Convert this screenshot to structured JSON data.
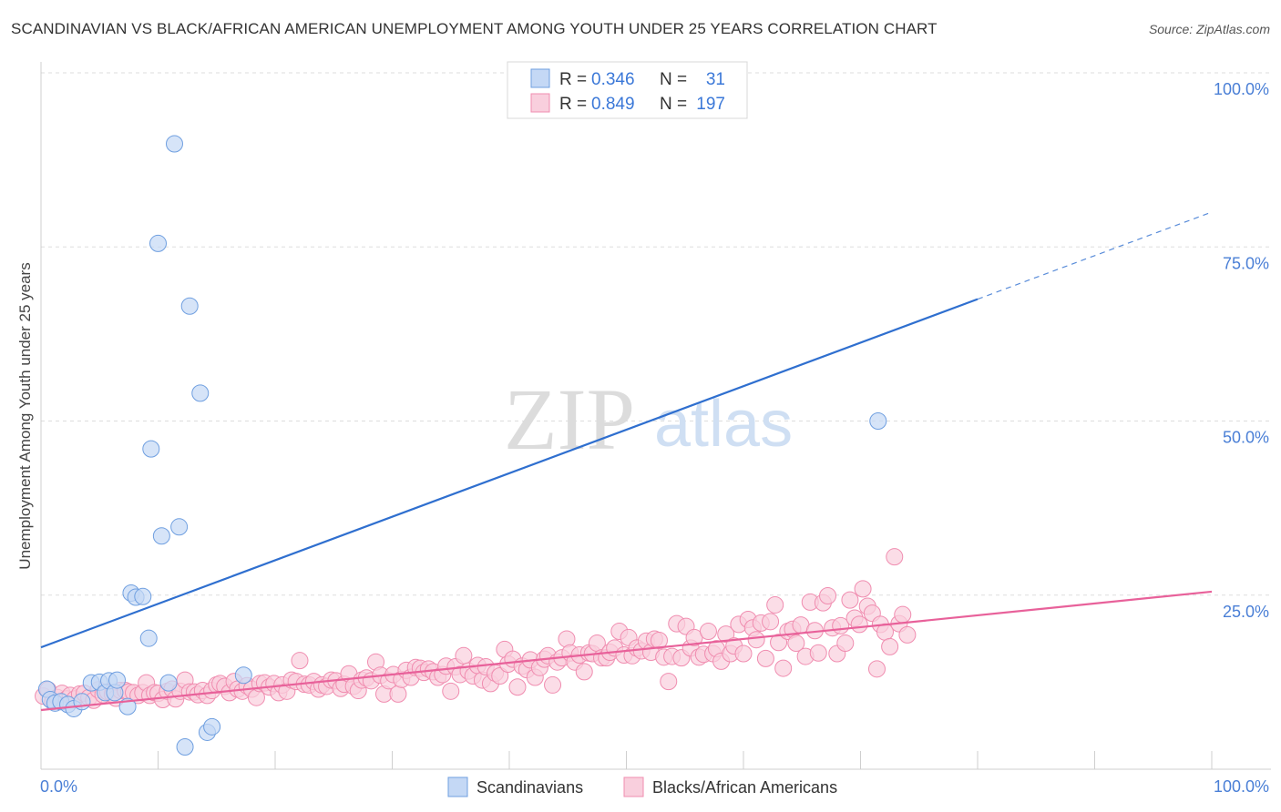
{
  "header": {
    "title": "SCANDINAVIAN VS BLACK/AFRICAN AMERICAN UNEMPLOYMENT AMONG YOUTH UNDER 25 YEARS CORRELATION CHART",
    "source": "Source: ZipAtlas.com"
  },
  "watermark": {
    "zip": "ZIP",
    "atlas": "atlas"
  },
  "stats": {
    "r_label": "R =",
    "n_label": "N =",
    "rows": [
      {
        "r": "0.346",
        "n": "31"
      },
      {
        "r": "0.849",
        "n": "197"
      }
    ]
  },
  "chart_data": {
    "type": "scatter",
    "title": "SCANDINAVIAN VS BLACK/AFRICAN AMERICAN UNEMPLOYMENT AMONG YOUTH UNDER 25 YEARS CORRELATION CHART",
    "xlabel": "",
    "ylabel": "Unemployment Among Youth under 25 years",
    "xlim": [
      0,
      100
    ],
    "ylim": [
      0,
      100
    ],
    "x_tick_labels": [
      "0.0%",
      "100.0%"
    ],
    "y_tick_labels": [
      "100.0%",
      "75.0%",
      "50.0%",
      "25.0%"
    ],
    "y_ticks": [
      100,
      75,
      50,
      25
    ],
    "grid": true,
    "legend_position": "bottom-center",
    "colors": {
      "Scandinavians": "#6f9fe0",
      "Blacks/African Americans": "#f08db0",
      "scand_fill": "#c4d8f5",
      "black_fill": "#f9cfdd",
      "scand_line": "#2f6fcf",
      "black_line": "#e8619a",
      "tick_text": "#4a7fd6"
    },
    "series": [
      {
        "name": "Scandinavians",
        "points": [
          [
            0.5,
            11.5
          ],
          [
            0.8,
            10
          ],
          [
            1.2,
            9.5
          ],
          [
            1.7,
            9.7
          ],
          [
            2.3,
            9.3
          ],
          [
            2.8,
            8.7
          ],
          [
            3.5,
            9.7
          ],
          [
            4.3,
            12.4
          ],
          [
            5.0,
            12.5
          ],
          [
            5.5,
            11
          ],
          [
            5.8,
            12.7
          ],
          [
            6.3,
            11
          ],
          [
            6.5,
            12.8
          ],
          [
            7.4,
            9
          ],
          [
            7.7,
            25.3
          ],
          [
            8.1,
            24.7
          ],
          [
            8.7,
            24.8
          ],
          [
            9.2,
            18.8
          ],
          [
            9.4,
            46
          ],
          [
            10.0,
            75.5
          ],
          [
            10.3,
            33.5
          ],
          [
            10.9,
            12.4
          ],
          [
            11.4,
            89.8
          ],
          [
            11.8,
            34.8
          ],
          [
            12.3,
            3.2
          ],
          [
            12.7,
            66.5
          ],
          [
            13.6,
            54
          ],
          [
            14.2,
            5.3
          ],
          [
            14.6,
            6.1
          ],
          [
            17.3,
            13.5
          ],
          [
            71.5,
            50
          ]
        ]
      },
      {
        "name": "Blacks/African Americans",
        "points": [
          [
            0.2,
            10.5
          ],
          [
            0.6,
            11.4
          ],
          [
            1.0,
            9.7
          ],
          [
            1.4,
            10.3
          ],
          [
            1.8,
            10.9
          ],
          [
            2.2,
            10.1
          ],
          [
            2.5,
            10.6
          ],
          [
            2.9,
            10.1
          ],
          [
            3.3,
            10.8
          ],
          [
            3.7,
            10.9
          ],
          [
            4.1,
            10.3
          ],
          [
            4.5,
            9.9
          ],
          [
            4.9,
            11.4
          ],
          [
            5.3,
            10.7
          ],
          [
            5.7,
            11.1
          ],
          [
            6.1,
            10.8
          ],
          [
            6.4,
            10.2
          ],
          [
            6.8,
            11.3
          ],
          [
            7.2,
            11.3
          ],
          [
            7.5,
            11.1
          ],
          [
            7.9,
            11
          ],
          [
            8.3,
            10.6
          ],
          [
            8.7,
            11
          ],
          [
            9.0,
            12.4
          ],
          [
            9.3,
            10.6
          ],
          [
            9.7,
            11
          ],
          [
            10.0,
            10.9
          ],
          [
            10.4,
            10
          ],
          [
            10.8,
            11.2
          ],
          [
            11.2,
            11.5
          ],
          [
            11.5,
            10.1
          ],
          [
            11.9,
            11.2
          ],
          [
            12.3,
            12.8
          ],
          [
            12.7,
            11.1
          ],
          [
            13.1,
            11.1
          ],
          [
            13.4,
            10.7
          ],
          [
            13.8,
            11.3
          ],
          [
            14.2,
            10.6
          ],
          [
            14.6,
            11.3
          ],
          [
            15.0,
            12.1
          ],
          [
            15.3,
            12.3
          ],
          [
            15.7,
            11.9
          ],
          [
            16.1,
            11
          ],
          [
            16.5,
            12.6
          ],
          [
            16.8,
            11.5
          ],
          [
            17.2,
            11.2
          ],
          [
            17.6,
            12
          ],
          [
            18.0,
            11.5
          ],
          [
            18.4,
            10.3
          ],
          [
            18.7,
            12.3
          ],
          [
            19.1,
            12.4
          ],
          [
            19.5,
            11.8
          ],
          [
            19.9,
            12.3
          ],
          [
            20.3,
            11
          ],
          [
            20.6,
            12.1
          ],
          [
            21.0,
            11.2
          ],
          [
            21.4,
            12.8
          ],
          [
            21.8,
            12.6
          ],
          [
            22.1,
            15.6
          ],
          [
            22.5,
            12.2
          ],
          [
            22.9,
            12.1
          ],
          [
            23.3,
            12.6
          ],
          [
            23.7,
            11.5
          ],
          [
            24.0,
            12.1
          ],
          [
            24.4,
            11.9
          ],
          [
            24.8,
            12.8
          ],
          [
            25.2,
            12.7
          ],
          [
            25.6,
            11.6
          ],
          [
            25.9,
            12.2
          ],
          [
            26.3,
            13.7
          ],
          [
            26.7,
            11.9
          ],
          [
            27.1,
            11.3
          ],
          [
            27.4,
            12.8
          ],
          [
            27.8,
            13.1
          ],
          [
            28.2,
            12.7
          ],
          [
            28.6,
            15.4
          ],
          [
            29.0,
            13.5
          ],
          [
            29.3,
            10.8
          ],
          [
            29.7,
            12.7
          ],
          [
            30.1,
            13.6
          ],
          [
            30.5,
            10.8
          ],
          [
            30.8,
            12.9
          ],
          [
            31.2,
            14.2
          ],
          [
            31.6,
            13.2
          ],
          [
            32.0,
            14.6
          ],
          [
            32.4,
            14.5
          ],
          [
            32.7,
            13.9
          ],
          [
            33.1,
            14.4
          ],
          [
            33.5,
            14
          ],
          [
            33.9,
            13.2
          ],
          [
            34.3,
            13.6
          ],
          [
            34.6,
            14.8
          ],
          [
            35.0,
            11.2
          ],
          [
            35.4,
            14.7
          ],
          [
            35.8,
            13.6
          ],
          [
            36.1,
            16.3
          ],
          [
            36.5,
            14.1
          ],
          [
            36.9,
            13.4
          ],
          [
            37.3,
            14.9
          ],
          [
            37.7,
            12.8
          ],
          [
            38.0,
            14.7
          ],
          [
            38.4,
            12.3
          ],
          [
            38.8,
            13.8
          ],
          [
            39.2,
            13.4
          ],
          [
            39.6,
            17.2
          ],
          [
            39.9,
            15.1
          ],
          [
            40.3,
            15.8
          ],
          [
            40.7,
            11.8
          ],
          [
            41.1,
            14.8
          ],
          [
            41.5,
            14.3
          ],
          [
            41.8,
            15.7
          ],
          [
            42.2,
            13.2
          ],
          [
            42.6,
            14.6
          ],
          [
            43.0,
            15.8
          ],
          [
            43.3,
            16.3
          ],
          [
            43.7,
            12.1
          ],
          [
            44.1,
            15.4
          ],
          [
            44.5,
            16
          ],
          [
            44.9,
            18.7
          ],
          [
            45.2,
            16.7
          ],
          [
            45.6,
            15.4
          ],
          [
            46.0,
            16.4
          ],
          [
            46.4,
            14
          ],
          [
            46.8,
            16.7
          ],
          [
            47.1,
            16.6
          ],
          [
            47.5,
            18.1
          ],
          [
            47.9,
            16
          ],
          [
            48.3,
            16
          ],
          [
            48.6,
            16.8
          ],
          [
            49.0,
            17.4
          ],
          [
            49.4,
            19.8
          ],
          [
            49.8,
            16.4
          ],
          [
            50.2,
            18.9
          ],
          [
            50.5,
            16.3
          ],
          [
            50.9,
            17.4
          ],
          [
            51.3,
            17
          ],
          [
            51.7,
            18.4
          ],
          [
            52.1,
            16.8
          ],
          [
            52.4,
            18.7
          ],
          [
            52.8,
            18.5
          ],
          [
            53.2,
            16.1
          ],
          [
            53.6,
            12.6
          ],
          [
            53.9,
            16.2
          ],
          [
            54.3,
            20.9
          ],
          [
            54.7,
            16
          ],
          [
            55.1,
            20.5
          ],
          [
            55.5,
            17.4
          ],
          [
            55.8,
            18.9
          ],
          [
            56.2,
            16.1
          ],
          [
            56.6,
            16.5
          ],
          [
            57.0,
            19.8
          ],
          [
            57.4,
            16.6
          ],
          [
            57.7,
            17.3
          ],
          [
            58.1,
            15.5
          ],
          [
            58.5,
            19.4
          ],
          [
            58.9,
            16.6
          ],
          [
            59.2,
            17.7
          ],
          [
            59.6,
            20.8
          ],
          [
            60.0,
            16.6
          ],
          [
            60.4,
            21.5
          ],
          [
            60.8,
            20.3
          ],
          [
            61.1,
            18.6
          ],
          [
            61.5,
            21
          ],
          [
            61.9,
            15.9
          ],
          [
            62.3,
            21.2
          ],
          [
            62.7,
            23.6
          ],
          [
            63.0,
            18.2
          ],
          [
            63.4,
            14.5
          ],
          [
            63.8,
            19.8
          ],
          [
            64.2,
            20.1
          ],
          [
            64.5,
            18.1
          ],
          [
            64.9,
            20.7
          ],
          [
            65.3,
            16.2
          ],
          [
            65.7,
            24
          ],
          [
            66.1,
            19.9
          ],
          [
            66.4,
            16.7
          ],
          [
            66.8,
            23.9
          ],
          [
            67.2,
            24.9
          ],
          [
            67.6,
            20.3
          ],
          [
            68.0,
            16.6
          ],
          [
            68.3,
            20.6
          ],
          [
            68.7,
            18.1
          ],
          [
            69.1,
            24.3
          ],
          [
            69.5,
            21.7
          ],
          [
            69.9,
            20.8
          ],
          [
            70.2,
            25.9
          ],
          [
            70.6,
            23.4
          ],
          [
            71.0,
            22.4
          ],
          [
            71.4,
            14.4
          ],
          [
            71.7,
            20.8
          ],
          [
            72.1,
            19.7
          ],
          [
            72.5,
            17.6
          ],
          [
            72.9,
            30.5
          ],
          [
            73.3,
            20.9
          ],
          [
            73.6,
            22.2
          ],
          [
            74.0,
            19.3
          ]
        ]
      }
    ],
    "trendlines": [
      {
        "series": "Scandinavians",
        "x": [
          0,
          80
        ],
        "y": [
          17.5,
          67.5
        ],
        "dashed_extension_to": [
          100,
          80
        ]
      },
      {
        "series": "Blacks/African Americans",
        "x": [
          0,
          100
        ],
        "y": [
          8.5,
          25.5
        ]
      }
    ]
  },
  "legend": {
    "items": [
      {
        "label": "Scandinavians"
      },
      {
        "label": "Blacks/African Americans"
      }
    ]
  }
}
